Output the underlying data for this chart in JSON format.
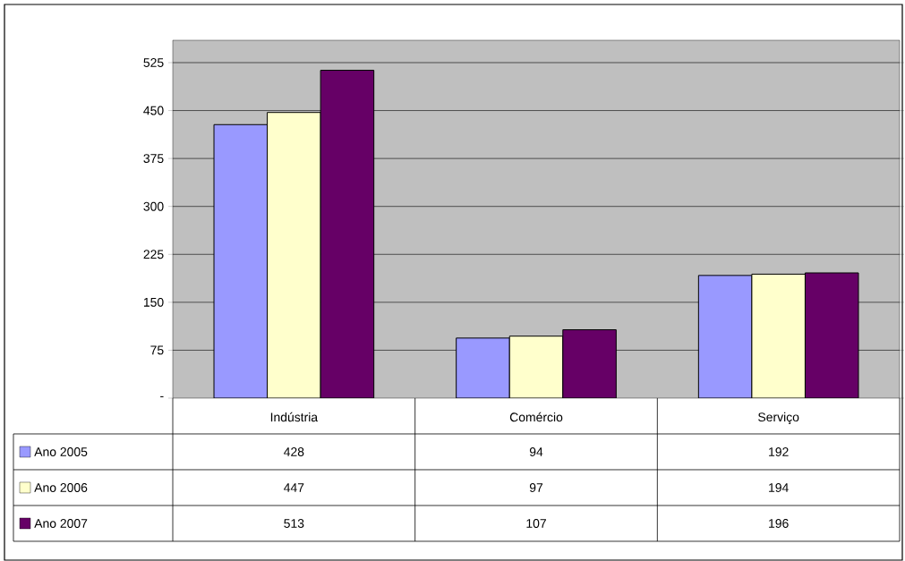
{
  "chart_data": {
    "type": "bar",
    "categories": [
      "Indústria",
      "Comércio",
      "Serviço"
    ],
    "series": [
      {
        "name": "Ano 2005",
        "color": "#9999ff",
        "values": [
          428,
          94,
          192
        ]
      },
      {
        "name": "Ano 2006",
        "color": "#ffffcc",
        "values": [
          447,
          97,
          194
        ]
      },
      {
        "name": "Ano 2007",
        "color": "#660066",
        "values": [
          513,
          107,
          196
        ]
      }
    ],
    "ylim": [
      0,
      560
    ],
    "yticks": [
      {
        "value": 0,
        "label": "-"
      },
      75,
      150,
      225,
      300,
      375,
      450,
      525
    ],
    "grid": "y",
    "data_labels": true,
    "legend": "bottom left"
  }
}
